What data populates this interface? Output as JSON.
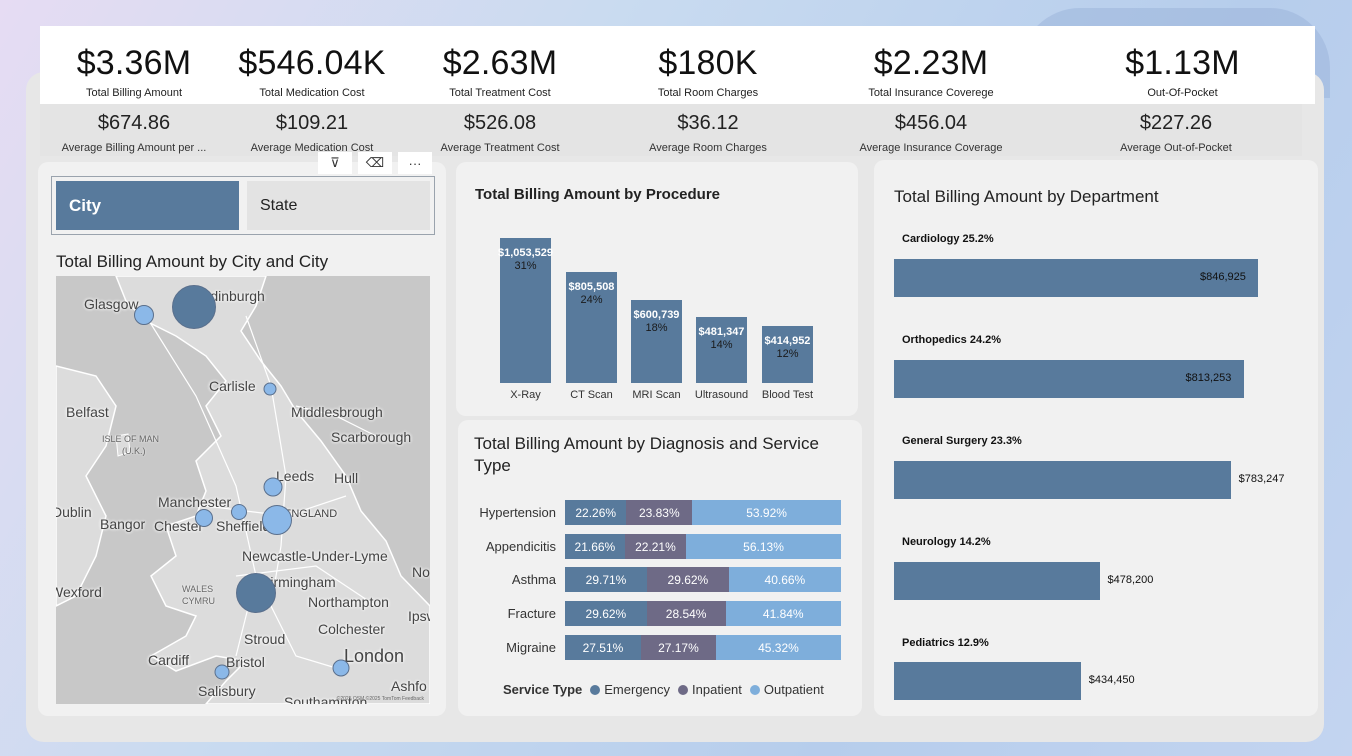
{
  "kpis": [
    {
      "value": "$3.36M",
      "label": "Total Billing Amount",
      "avg_value": "$674.86",
      "avg_label": "Average Billing Amount per ..."
    },
    {
      "value": "$546.04K",
      "label": "Total Medication Cost",
      "avg_value": "$109.21",
      "avg_label": "Average Medication Cost"
    },
    {
      "value": "$2.63M",
      "label": "Total Treatment Cost",
      "avg_value": "$526.08",
      "avg_label": "Average Treatment Cost"
    },
    {
      "value": "$180K",
      "label": "Total Room Charges",
      "avg_value": "$36.12",
      "avg_label": "Average Room Charges"
    },
    {
      "value": "$2.23M",
      "label": "Total Insurance Coverege",
      "avg_value": "$456.04",
      "avg_label": "Average Insurance Coverage"
    },
    {
      "value": "$1.13M",
      "label": "Out-Of-Pocket",
      "avg_value": "$227.26",
      "avg_label": "Average Out-of-Pocket"
    }
  ],
  "slicer": {
    "city": "City",
    "state": "State"
  },
  "toolbar": {
    "filter_icon": "filter-icon",
    "eraser_icon": "eraser-icon",
    "more_icon": "more-options-icon",
    "filter_glyph": "⊽",
    "eraser_glyph": "⌫",
    "more_glyph": "···"
  },
  "map": {
    "title": "Total Billing Amount by City and City",
    "labels": [
      "Glasgow",
      "Edinburgh",
      "Carlisle",
      "Belfast",
      "Middlesbrough",
      "Scarborough",
      "ISLE OF MAN",
      "(U.K.)",
      "Leeds",
      "Hull",
      "Manchester",
      "ENGLAND",
      "Dublin",
      "Bangor",
      "Chester",
      "Sheffield",
      "Newcastle-Under-Lyme",
      "No",
      "Wexford",
      "WALES",
      "CYMRU",
      "Birmingham",
      "Northampton",
      "Ipsw",
      "Stroud",
      "Colchester",
      "Cardiff",
      "Bristol",
      "London",
      "Salisbury",
      "Ashfo",
      "Southampton"
    ],
    "credit": "©2025 OSM ©2025 TomTom Feedback",
    "bubble_color": "#8bb8e8",
    "bubble_color_large": "#587a9c"
  },
  "procedure_chart": {
    "title": "Total Billing Amount by Procedure",
    "chart_data": {
      "type": "bar",
      "title": "Total Billing Amount by Procedure",
      "categories": [
        "X-Ray",
        "CT Scan",
        "MRI Scan",
        "Ultrasound",
        "Blood Test"
      ],
      "values": [
        1053529,
        805508,
        600739,
        481347,
        414952
      ],
      "value_labels": [
        "$1,053,529",
        "$805,508",
        "$600,739",
        "$481,347",
        "$414,952"
      ],
      "percent_labels": [
        "31%",
        "24%",
        "18%",
        "14%",
        "12%"
      ],
      "color": "#587a9c"
    }
  },
  "diagnosis_chart": {
    "title_line1": "Total Billing Amount by Diagnosis and Service",
    "title_line2": "Type",
    "legend_title": "Service Type",
    "chart_data": {
      "type": "bar",
      "stacked": true,
      "percent": true,
      "categories": [
        "Hypertension",
        "Appendicitis",
        "Asthma",
        "Fracture",
        "Migraine"
      ],
      "series": [
        {
          "name": "Emergency",
          "color": "#587a9c",
          "values": [
            22.26,
            21.66,
            29.71,
            29.62,
            27.51
          ],
          "labels": [
            "22.26%",
            "21.66%",
            "29.71%",
            "29.62%",
            "27.51%"
          ]
        },
        {
          "name": "Inpatient",
          "color": "#6e6a86",
          "values": [
            23.83,
            22.21,
            29.62,
            28.54,
            27.17
          ],
          "labels": [
            "23.83%",
            "22.21%",
            "29.62%",
            "28.54%",
            "27.17%"
          ]
        },
        {
          "name": "Outpatient",
          "color": "#7eaedb",
          "values": [
            53.92,
            56.13,
            40.66,
            41.84,
            45.32
          ],
          "labels": [
            "53.92%",
            "56.13%",
            "40.66%",
            "41.84%",
            "45.32%"
          ]
        }
      ],
      "legend_position": "bottom"
    }
  },
  "department_chart": {
    "title": "Total Billing Amount by Department",
    "chart_data": {
      "type": "bar",
      "orientation": "horizontal",
      "categories": [
        "Cardiology",
        "Orthopedics",
        "General Surgery",
        "Neurology",
        "Pediatrics"
      ],
      "category_labels": [
        "Cardiology 25.2%",
        "Orthopedics 24.2%",
        "General Surgery 23.3%",
        "Neurology 14.2%",
        "Pediatrics 12.9%"
      ],
      "values": [
        846925,
        813253,
        783247,
        478200,
        434450
      ],
      "value_labels": [
        "$846,925",
        "$813,253",
        "$783,247",
        "$478,200",
        "$434,450"
      ],
      "color": "#587a9c"
    }
  }
}
